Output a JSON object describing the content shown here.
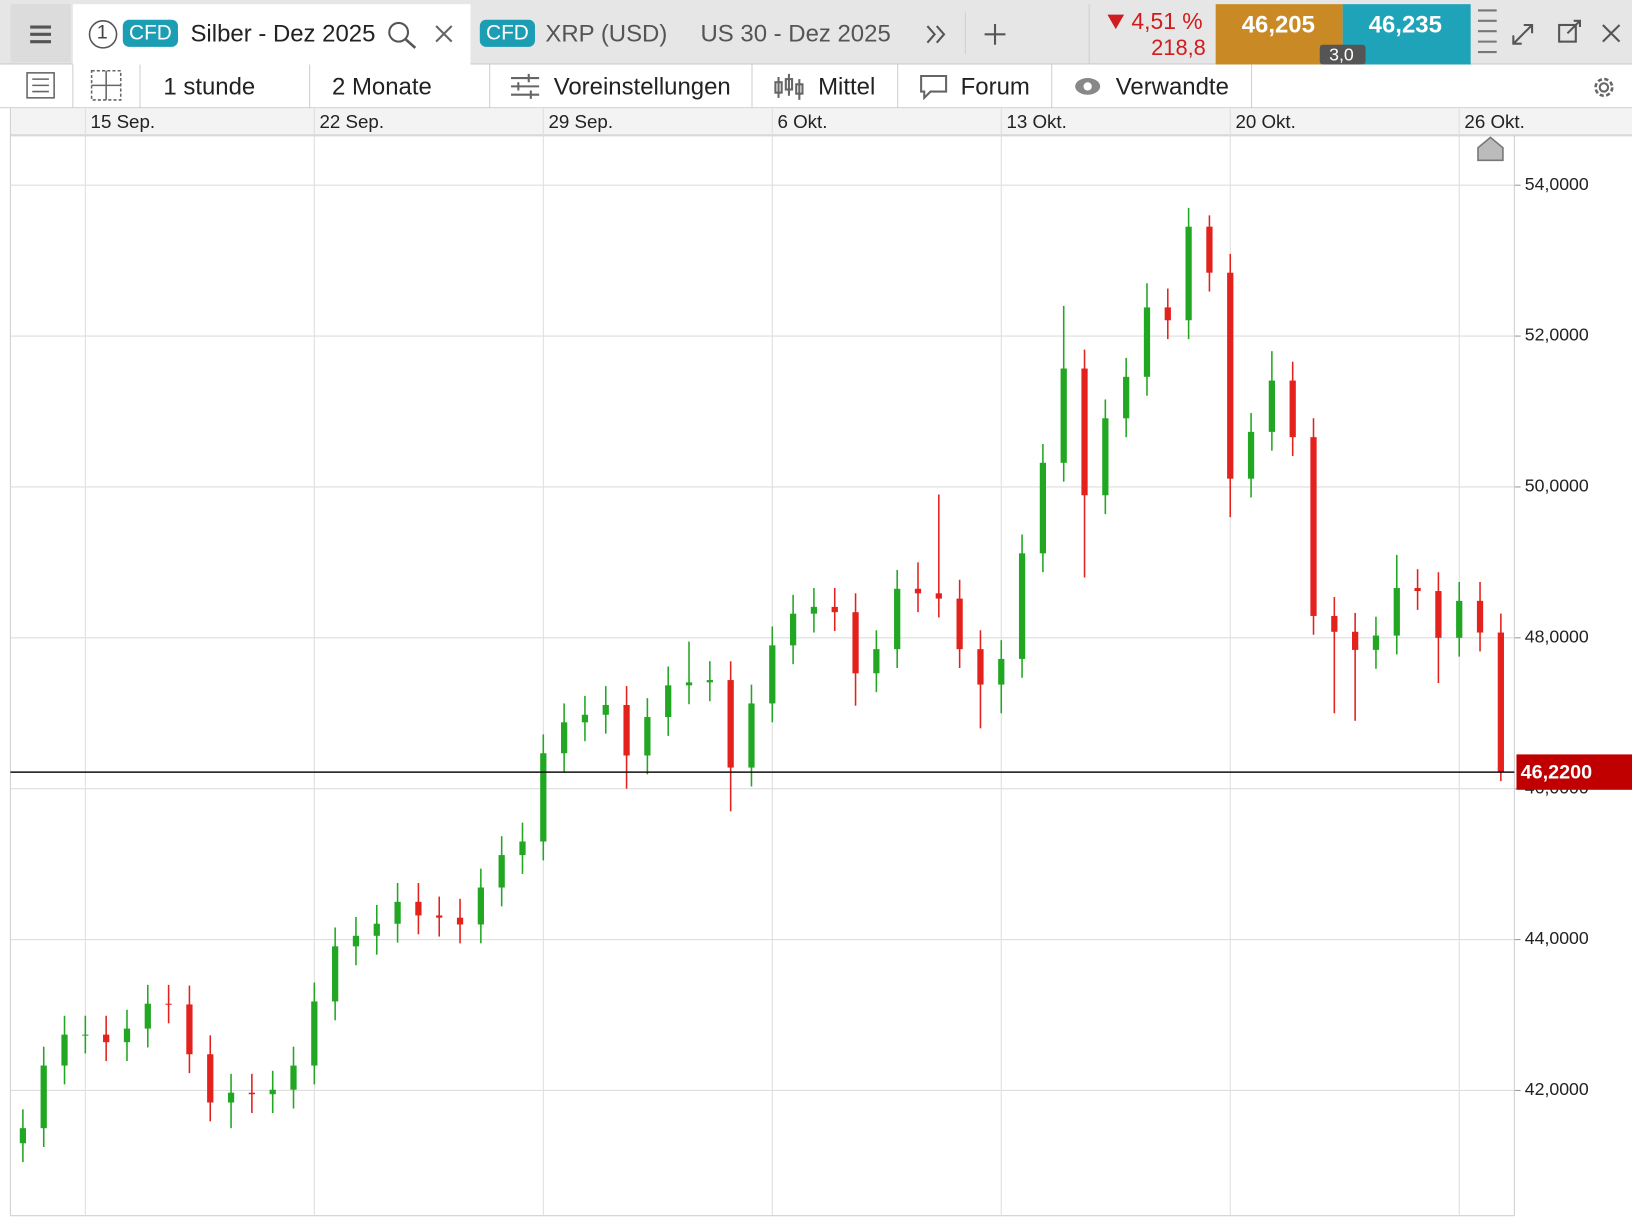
{
  "tabs": [
    {
      "index": "1",
      "badge": "CFD",
      "title": "Silber - Dez 2025"
    },
    {
      "badge": "CFD",
      "title": "XRP (USD)"
    },
    {
      "title": "US 30 - Dez 2025"
    }
  ],
  "quote": {
    "change_pct": "4,51 %",
    "change_abs": "218,8",
    "bid": "46,205",
    "ask": "46,235",
    "spread": "3,0"
  },
  "toolbar": [
    "1 stunde",
    "2 Monate",
    "Voreinstellungen",
    "Mittel",
    "Forum",
    "Verwandte"
  ],
  "chart_data": {
    "type": "candlestick",
    "categories": [
      null,
      null,
      null,
      "15 Sep.",
      null,
      null,
      null,
      null,
      null,
      null,
      null,
      null,
      null,
      null,
      "22 Sep.",
      null,
      null,
      null,
      null,
      null,
      null,
      null,
      null,
      null,
      null,
      "29 Sep.",
      null,
      null,
      null,
      null,
      null,
      null,
      null,
      null,
      null,
      null,
      "6 Okt.",
      null,
      null,
      null,
      null,
      null,
      null,
      null,
      null,
      null,
      null,
      "13 Okt.",
      null,
      null,
      null,
      null,
      null,
      null,
      null,
      null,
      null,
      null,
      "20 Okt.",
      null,
      null,
      null,
      null,
      null,
      null,
      null,
      null,
      null,
      null,
      "26 Okt.",
      null,
      null
    ],
    "open": [
      41.3,
      41.5,
      42.33,
      42.74,
      42.74,
      42.64,
      42.82,
      43.15,
      43.14,
      42.48,
      41.84,
      41.97,
      41.95,
      42.01,
      42.33,
      43.18,
      43.91,
      44.05,
      44.21,
      44.5,
      44.32,
      44.29,
      44.2,
      44.69,
      45.12,
      45.3,
      46.47,
      46.88,
      46.98,
      47.11,
      46.44,
      46.95,
      47.37,
      47.41,
      47.44,
      46.28,
      47.13,
      47.9,
      48.32,
      48.41,
      48.34,
      47.53,
      47.85,
      48.65,
      48.59,
      48.52,
      47.85,
      47.38,
      47.72,
      49.12,
      50.32,
      51.57,
      49.89,
      50.91,
      51.46,
      52.38,
      52.21,
      53.45,
      52.84,
      50.11,
      50.73,
      51.41,
      50.66,
      48.29,
      48.08,
      47.84,
      48.03,
      48.66,
      48.62,
      48.0,
      48.49,
      48.07
    ],
    "high": [
      41.75,
      42.58,
      42.99,
      42.99,
      42.99,
      43.07,
      43.4,
      43.4,
      43.39,
      42.73,
      42.22,
      42.22,
      42.26,
      42.58,
      43.43,
      44.16,
      44.3,
      44.46,
      44.75,
      44.75,
      44.57,
      44.54,
      44.94,
      45.37,
      45.55,
      46.72,
      47.13,
      47.23,
      47.36,
      47.36,
      47.2,
      47.62,
      47.95,
      47.69,
      47.69,
      47.38,
      48.15,
      48.57,
      48.66,
      48.66,
      48.59,
      48.1,
      48.9,
      49.0,
      49.9,
      48.77,
      48.1,
      47.97,
      49.37,
      50.57,
      52.4,
      51.82,
      51.16,
      51.71,
      52.7,
      52.63,
      53.7,
      53.6,
      53.09,
      50.98,
      51.8,
      51.66,
      50.91,
      48.54,
      48.33,
      48.28,
      49.1,
      48.91,
      48.87,
      48.74,
      48.74,
      48.32
    ],
    "low": [
      41.05,
      41.25,
      42.08,
      42.49,
      42.39,
      42.39,
      42.57,
      42.89,
      42.23,
      41.59,
      41.5,
      41.7,
      41.7,
      41.76,
      42.08,
      42.93,
      43.66,
      43.8,
      43.96,
      44.07,
      44.04,
      43.95,
      43.95,
      44.44,
      44.87,
      45.05,
      46.22,
      46.63,
      46.73,
      46.0,
      46.19,
      46.7,
      47.12,
      47.16,
      45.7,
      46.03,
      46.88,
      47.65,
      48.07,
      48.09,
      47.1,
      47.28,
      47.6,
      48.34,
      48.27,
      47.6,
      46.8,
      47.0,
      47.47,
      48.87,
      50.07,
      48.8,
      49.64,
      50.66,
      51.21,
      51.96,
      51.96,
      52.59,
      49.6,
      49.86,
      50.48,
      50.41,
      48.04,
      47.0,
      46.9,
      47.59,
      47.78,
      48.37,
      47.4,
      47.75,
      47.82,
      46.1
    ],
    "close": [
      41.5,
      42.33,
      42.74,
      42.74,
      42.64,
      42.82,
      43.15,
      43.14,
      42.48,
      41.84,
      41.97,
      41.95,
      42.01,
      42.33,
      43.18,
      43.91,
      44.05,
      44.21,
      44.5,
      44.32,
      44.29,
      44.2,
      44.69,
      45.12,
      45.3,
      46.47,
      46.88,
      46.98,
      47.11,
      46.44,
      46.95,
      47.37,
      47.41,
      47.44,
      46.28,
      47.13,
      47.9,
      48.32,
      48.41,
      48.34,
      47.53,
      47.85,
      48.65,
      48.59,
      48.52,
      47.85,
      47.38,
      47.72,
      49.12,
      50.32,
      51.57,
      49.89,
      50.91,
      51.46,
      52.38,
      52.21,
      53.45,
      52.84,
      50.11,
      50.73,
      51.41,
      50.66,
      48.29,
      48.08,
      47.84,
      48.03,
      48.66,
      48.62,
      48.0,
      48.49,
      48.07,
      46.22
    ],
    "up_color": "#22a722",
    "down_color": "#e3211d",
    "ylim": [
      40.34,
      54.62
    ],
    "yticks": [
      {
        "value": 42,
        "label": "42,0000"
      },
      {
        "value": 44,
        "label": "44,0000"
      },
      {
        "value": 46,
        "label": "46,0000"
      },
      {
        "value": 48,
        "label": "48,0000"
      },
      {
        "value": 50,
        "label": "50,0000"
      },
      {
        "value": 52,
        "label": "52,0000"
      },
      {
        "value": 54,
        "label": "54,0000"
      }
    ],
    "grid": true,
    "last_price": 46.22,
    "last_price_label": "46,2200",
    "last_price_color": "#c00000"
  }
}
